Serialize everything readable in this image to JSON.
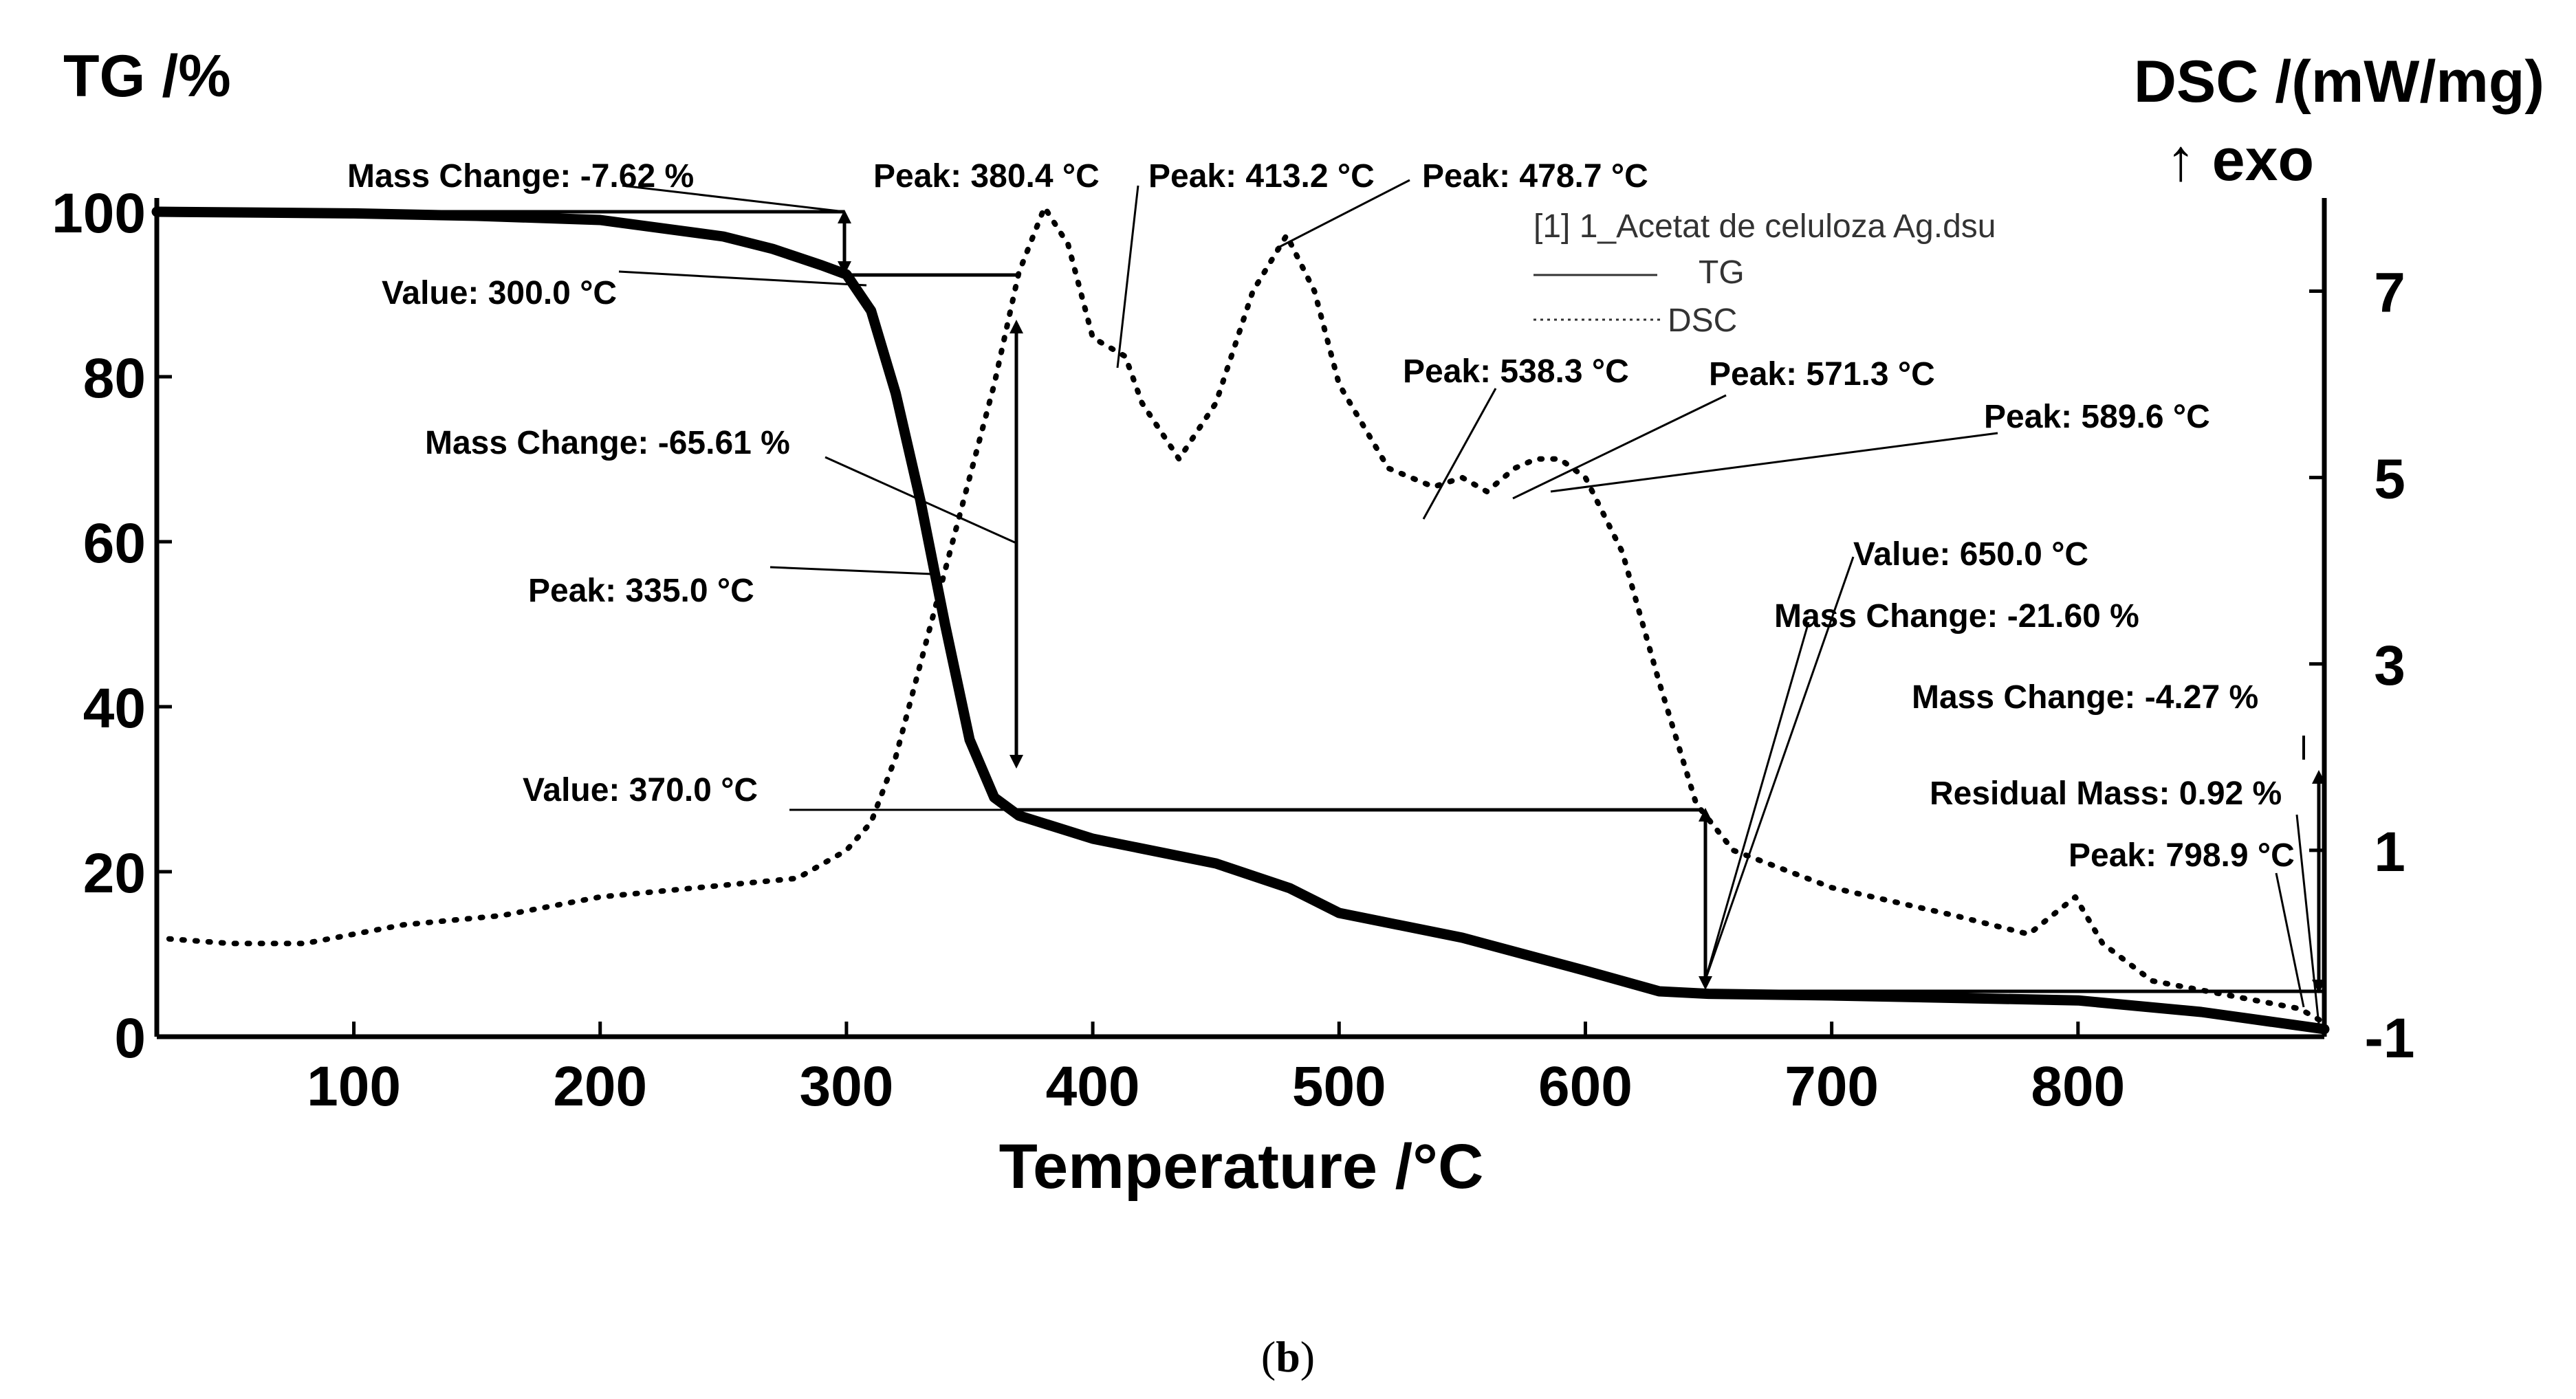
{
  "chart_data": {
    "type": "line",
    "title_left": "TG /%",
    "title_right": "DSC /(mW/mg)",
    "title_right_sub": "↑ exo",
    "xlabel": "Temperature /°C",
    "xlim": [
      20,
      900
    ],
    "y_left_lim": [
      0,
      100
    ],
    "y_right_lim": [
      -1,
      8
    ],
    "x_ticks": [
      {
        "value": 100,
        "label": "100"
      },
      {
        "value": 200,
        "label": "200"
      },
      {
        "value": 300,
        "label": "300"
      },
      {
        "value": 400,
        "label": "400"
      },
      {
        "value": 500,
        "label": "500"
      },
      {
        "value": 600,
        "label": "600"
      },
      {
        "value": 700,
        "label": "700"
      },
      {
        "value": 800,
        "label": "800"
      }
    ],
    "y_left_ticks": [
      {
        "value": 0,
        "label": "0"
      },
      {
        "value": 20,
        "label": "20"
      },
      {
        "value": 40,
        "label": "40"
      },
      {
        "value": 60,
        "label": "60"
      },
      {
        "value": 80,
        "label": "80"
      },
      {
        "value": 100,
        "label": "100"
      }
    ],
    "y_right_ticks": [
      {
        "value": -1,
        "label": "-1"
      },
      {
        "value": 1,
        "label": "1"
      },
      {
        "value": 3,
        "label": "3"
      },
      {
        "value": 5,
        "label": "5"
      },
      {
        "value": 7,
        "label": "7"
      }
    ],
    "legend": {
      "position": "top-right",
      "header": "[1] 1_Acetat de celuloza Ag.dsu",
      "entries": [
        {
          "name": "TG",
          "style": "solid"
        },
        {
          "name": "DSC",
          "style": "dotted"
        }
      ]
    },
    "series": [
      {
        "name": "TG",
        "axis": "left",
        "style": "solid",
        "x": [
          20,
          100,
          150,
          200,
          250,
          270,
          290,
          300,
          310,
          320,
          330,
          340,
          350,
          360,
          370,
          400,
          450,
          480,
          500,
          550,
          600,
          630,
          650,
          700,
          800,
          850,
          900
        ],
        "y": [
          100,
          99.8,
          99.5,
          99,
          97,
          95.5,
          93.5,
          92.4,
          88,
          78,
          65,
          50,
          36,
          29,
          26.8,
          24,
          21,
          18,
          15,
          12,
          8,
          5.5,
          5.2,
          5,
          4.4,
          3,
          0.92
        ]
      },
      {
        "name": "DSC",
        "axis": "right",
        "style": "dotted",
        "x": [
          25,
          50,
          80,
          120,
          160,
          200,
          240,
          280,
          300,
          310,
          320,
          330,
          340,
          350,
          360,
          370,
          380.4,
          390,
          400,
          413.2,
          420,
          435,
          450,
          465,
          478.7,
          490,
          500,
          520,
          538.3,
          550,
          560,
          571.3,
          580,
          589.6,
          600,
          615,
          630,
          645,
          660,
          700,
          750,
          780,
          798.9,
          810,
          830,
          850,
          870,
          890,
          900
        ],
        "y": [
          0.05,
          0,
          0,
          0.2,
          0.3,
          0.5,
          0.6,
          0.7,
          1.0,
          1.3,
          2.0,
          3.0,
          4.0,
          5.0,
          6.0,
          7.2,
          7.9,
          7.5,
          6.5,
          6.3,
          5.8,
          5.2,
          5.8,
          7.0,
          7.6,
          7.0,
          6.0,
          5.1,
          4.9,
          5.0,
          4.85,
          5.1,
          5.2,
          5.2,
          5.0,
          4.2,
          2.8,
          1.5,
          1.0,
          0.6,
          0.3,
          0.1,
          0.5,
          0.0,
          -0.4,
          -0.5,
          -0.6,
          -0.7,
          -0.85
        ]
      }
    ],
    "annotations": [
      {
        "label": "Mass Change: -7.62 %"
      },
      {
        "label": "Value: 300.0 °C"
      },
      {
        "label": "Mass Change: -65.61 %"
      },
      {
        "label": "Peak: 335.0 °C"
      },
      {
        "label": "Value: 370.0 °C"
      },
      {
        "label": "Peak: 380.4 °C"
      },
      {
        "label": "Peak: 413.2 °C"
      },
      {
        "label": "Peak: 478.7 °C"
      },
      {
        "label": "Peak: 538.3 °C"
      },
      {
        "label": "Peak: 571.3 °C"
      },
      {
        "label": "Peak: 589.6 °C"
      },
      {
        "label": "Value: 650.0 °C"
      },
      {
        "label": "Mass Change: -21.60 %"
      },
      {
        "label": "Mass Change: -4.27 %"
      },
      {
        "label": "Residual Mass: 0.92 %"
      },
      {
        "label": "Peak: 798.9 °C"
      }
    ]
  },
  "caption": {
    "open": "(",
    "letter": "b",
    "close": ")"
  }
}
